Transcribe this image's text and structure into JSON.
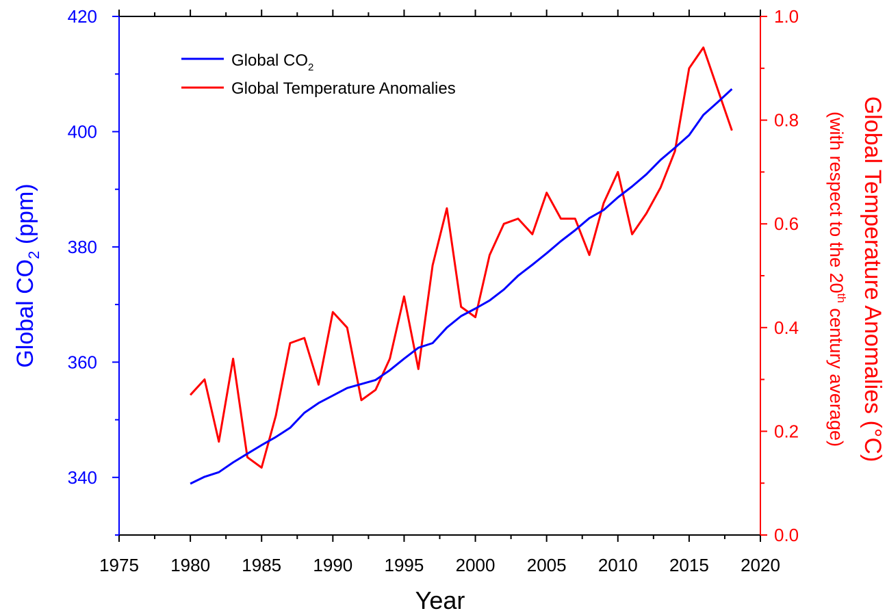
{
  "chart_data": {
    "type": "line",
    "xlabel": "Year",
    "ylabel_left": {
      "main": "Global CO",
      "sub": "2",
      "unit": " (ppm)"
    },
    "ylabel_right": {
      "main": "Global Temperature Anomalies (°C)",
      "line2_pre": "(with respect to the 20",
      "line2_sup": "th",
      "line2_post": " century average)"
    },
    "xlim": [
      1975,
      2020
    ],
    "ylim_left": [
      330,
      420
    ],
    "ylim_right": [
      0.0,
      1.0
    ],
    "x_ticks": [
      "1975",
      "1980",
      "1985",
      "1990",
      "1995",
      "2000",
      "2005",
      "2010",
      "2015",
      "2020"
    ],
    "y_left_ticks": [
      "340",
      "360",
      "380",
      "400",
      "420"
    ],
    "y_right_ticks": [
      "0.0",
      "0.2",
      "0.4",
      "0.6",
      "0.8",
      "1.0"
    ],
    "legend": {
      "placement": "top-left"
    },
    "colors": {
      "co2": "#0000ff",
      "temp": "#ff0000",
      "axis": "#000000"
    },
    "x": [
      1980,
      1981,
      1982,
      1983,
      1984,
      1985,
      1986,
      1987,
      1988,
      1989,
      1990,
      1991,
      1992,
      1993,
      1994,
      1995,
      1996,
      1997,
      1998,
      1999,
      2000,
      2001,
      2002,
      2003,
      2004,
      2005,
      2006,
      2007,
      2008,
      2009,
      2010,
      2011,
      2012,
      2013,
      2014,
      2015,
      2016,
      2017,
      2018
    ],
    "series": [
      {
        "name": "Global CO",
        "name_sub": "2",
        "axis": "left",
        "values": [
          338.9,
          340.1,
          340.9,
          342.6,
          344.1,
          345.6,
          347.0,
          348.6,
          351.2,
          352.9,
          354.2,
          355.5,
          356.2,
          356.9,
          358.6,
          360.6,
          362.5,
          363.3,
          366.0,
          368.0,
          369.3,
          370.7,
          372.6,
          375.0,
          376.9,
          378.9,
          381.0,
          382.9,
          385.0,
          386.4,
          388.6,
          390.5,
          392.6,
          395.1,
          397.2,
          399.4,
          402.9,
          405.1,
          407.4
        ]
      },
      {
        "name": "Global Temperature Anomalies",
        "axis": "right",
        "values": [
          0.27,
          0.3,
          0.18,
          0.34,
          0.15,
          0.13,
          0.23,
          0.37,
          0.38,
          0.29,
          0.43,
          0.4,
          0.26,
          0.28,
          0.34,
          0.46,
          0.32,
          0.52,
          0.63,
          0.44,
          0.42,
          0.54,
          0.6,
          0.61,
          0.58,
          0.66,
          0.61,
          0.61,
          0.54,
          0.64,
          0.7,
          0.58,
          0.62,
          0.67,
          0.74,
          0.9,
          0.94,
          0.86,
          0.78
        ]
      }
    ]
  }
}
